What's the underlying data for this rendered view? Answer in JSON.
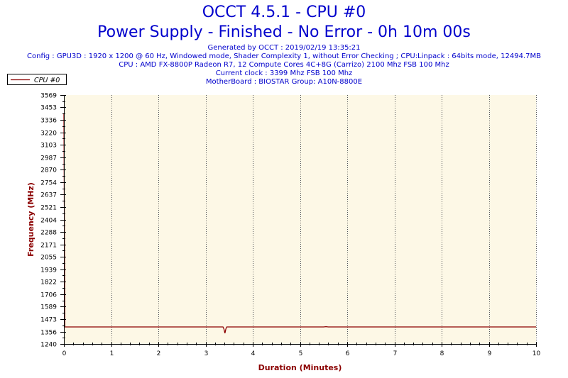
{
  "header": {
    "title": "OCCT 4.5.1 - CPU #0",
    "subtitle": "Power Supply - Finished - No Error - 0h 10m 00s",
    "info_lines": [
      "Generated by OCCT : 2019/02/19 13:35:21",
      "Config : GPU3D : 1920 x 1200 @ 60 Hz, Windowed mode, Shader Complexity 1, without Error Checking ; CPU:Linpack : 64bits mode, 12494.7MB",
      "CPU : AMD FX-8800P Radeon R7, 12 Compute Cores 4C+8G (Carrizo) 2100 Mhz FSB 100 Mhz",
      "Current clock : 3399 Mhz FSB 100 Mhz",
      "MotherBoard : BIOSTAR Group: A10N-8800E"
    ]
  },
  "colors": {
    "title": "#0000cc",
    "axis_label": "#8b0000",
    "plot_background": "#fdf8e6",
    "series": "#8b0000"
  },
  "chart_data": {
    "type": "line",
    "xlabel": "Duration (Minutes)",
    "ylabel": "Frequency (MHz)",
    "xlim": [
      0,
      10
    ],
    "ylim": [
      1240,
      3569
    ],
    "x_ticks": [
      "0",
      "1",
      "2",
      "3",
      "4",
      "5",
      "6",
      "7",
      "8",
      "9",
      "10"
    ],
    "y_ticks": [
      "1240",
      "1356",
      "1473",
      "1589",
      "1706",
      "1822",
      "1939",
      "2055",
      "2171",
      "2288",
      "2404",
      "2521",
      "2637",
      "2754",
      "2870",
      "2987",
      "3103",
      "3220",
      "3336",
      "3453",
      "3569"
    ],
    "grid": "vertical dotted",
    "legend_position": "top-left",
    "series": [
      {
        "name": "CPU #0",
        "x": [
          0,
          0.02,
          0.04,
          3.37,
          3.39,
          3.41,
          3.43,
          3.45,
          5.5,
          5.55,
          5.6,
          10
        ],
        "y": [
          3400,
          1400,
          1399,
          1399,
          1380,
          1340,
          1380,
          1399,
          1399,
          1402,
          1399,
          1399
        ]
      }
    ]
  }
}
